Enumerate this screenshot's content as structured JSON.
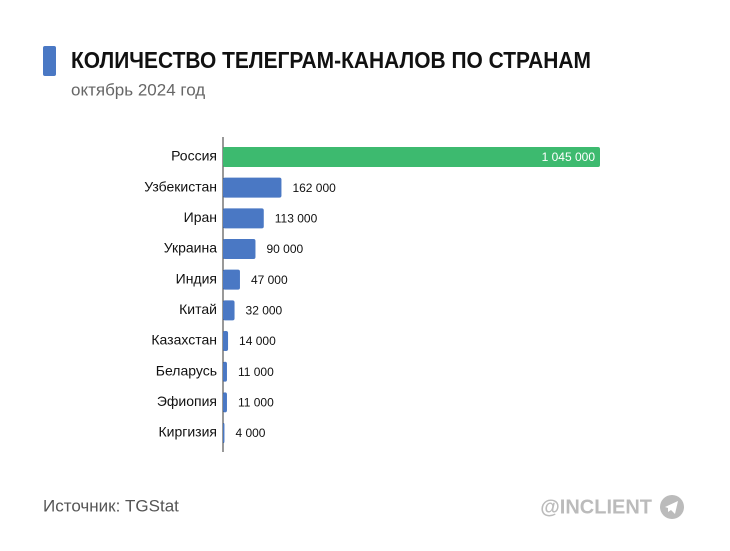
{
  "chart_data": {
    "type": "bar",
    "orientation": "horizontal",
    "title": "КОЛИЧЕСТВО ТЕЛЕГРАМ-КАНАЛОВ ПО СТРАНАМ",
    "subtitle": "октябрь 2024 год",
    "categories": [
      "Россия",
      "Узбекистан",
      "Иран",
      "Украина",
      "Индия",
      "Китай",
      "Казахстан",
      "Беларусь",
      "Эфиопия",
      "Киргизия"
    ],
    "values": [
      1045000,
      162000,
      113000,
      90000,
      47000,
      32000,
      14000,
      11000,
      11000,
      4000
    ],
    "value_labels": [
      "1 045 000",
      "162 000",
      "113 000",
      "90 000",
      "47 000",
      "32 000",
      "14 000",
      "11 000",
      "11 000",
      "4 000"
    ],
    "colors": [
      "#3dba6f",
      "#4a78c4",
      "#4a78c4",
      "#4a78c4",
      "#4a78c4",
      "#4a78c4",
      "#4a78c4",
      "#4a78c4",
      "#4a78c4",
      "#4a78c4"
    ],
    "source": "Источник: TGStat",
    "brand": "@INCLIENT"
  }
}
